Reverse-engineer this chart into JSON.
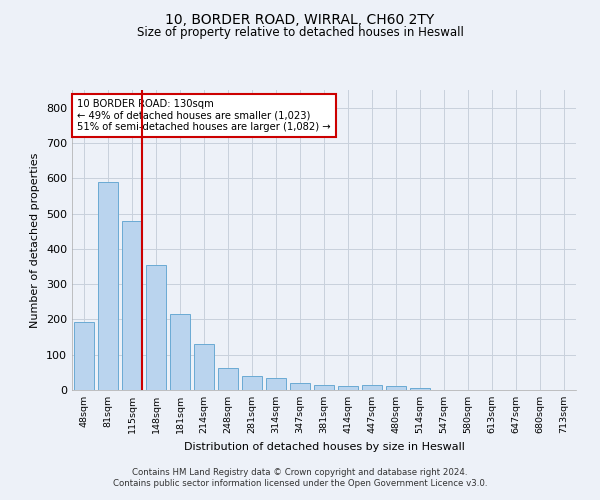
{
  "title_line1": "10, BORDER ROAD, WIRRAL, CH60 2TY",
  "title_line2": "Size of property relative to detached houses in Heswall",
  "xlabel": "Distribution of detached houses by size in Heswall",
  "ylabel": "Number of detached properties",
  "categories": [
    "48sqm",
    "81sqm",
    "115sqm",
    "148sqm",
    "181sqm",
    "214sqm",
    "248sqm",
    "281sqm",
    "314sqm",
    "347sqm",
    "381sqm",
    "414sqm",
    "447sqm",
    "480sqm",
    "514sqm",
    "547sqm",
    "580sqm",
    "613sqm",
    "647sqm",
    "680sqm",
    "713sqm"
  ],
  "values": [
    193,
    590,
    480,
    355,
    215,
    130,
    62,
    40,
    35,
    20,
    14,
    10,
    13,
    10,
    7,
    0,
    0,
    0,
    0,
    0,
    0
  ],
  "bar_color": "#bad4ee",
  "bar_edge_color": "#6aaad4",
  "marker_index": 2,
  "marker_color": "#cc0000",
  "annotation_line1": "10 BORDER ROAD: 130sqm",
  "annotation_line2": "← 49% of detached houses are smaller (1,023)",
  "annotation_line3": "51% of semi-detached houses are larger (1,082) →",
  "annotation_box_color": "#ffffff",
  "annotation_box_edgecolor": "#cc0000",
  "ylim": [
    0,
    850
  ],
  "yticks": [
    0,
    100,
    200,
    300,
    400,
    500,
    600,
    700,
    800
  ],
  "grid_color": "#c8d0dc",
  "background_color": "#edf1f8",
  "footer_line1": "Contains HM Land Registry data © Crown copyright and database right 2024.",
  "footer_line2": "Contains public sector information licensed under the Open Government Licence v3.0."
}
